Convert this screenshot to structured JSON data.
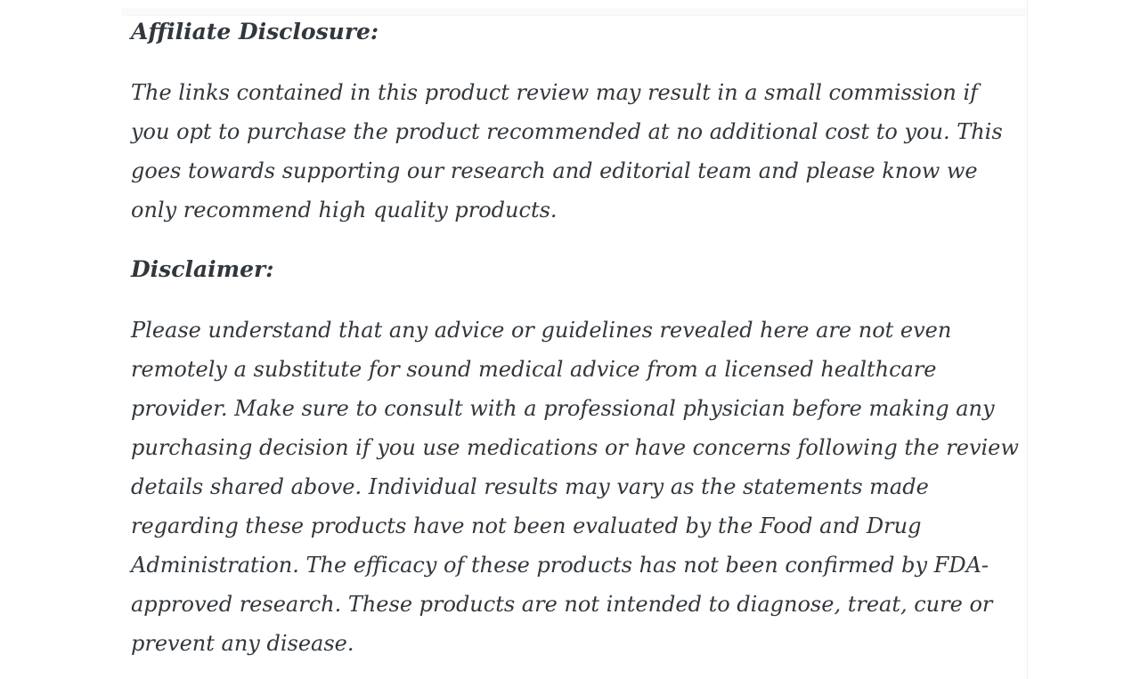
{
  "page": {
    "background_color": "#ffffff",
    "text_color": "#32373c",
    "divider_color": "#efefef",
    "top_strip_color": "#fafafa"
  },
  "content": {
    "sections": [
      {
        "heading": "Affiliate Disclosure:",
        "lines": [
          "The links contained in this product review may result in a small commission if",
          "you opt to purchase the product recommended at no additional cost to you. This",
          "goes towards supporting our research and editorial team and please know we",
          "only recommend high quality products."
        ]
      },
      {
        "heading": "Disclaimer:",
        "lines": [
          "Please understand that any advice or guidelines revealed here are not even",
          "remotely a substitute for sound medical advice from a licensed healthcare",
          "provider. Make sure to consult with a professional physician before making any",
          "purchasing decision if you use medications or have concerns following the review",
          "details shared above. Individual results may vary as the statements made",
          "regarding these products have not been evaluated by the Food and Drug",
          "Administration. The efficacy of these products has not been confirmed by FDA-",
          "approved research. These products are not intended to diagnose, treat, cure or",
          "prevent any disease."
        ]
      }
    ]
  }
}
